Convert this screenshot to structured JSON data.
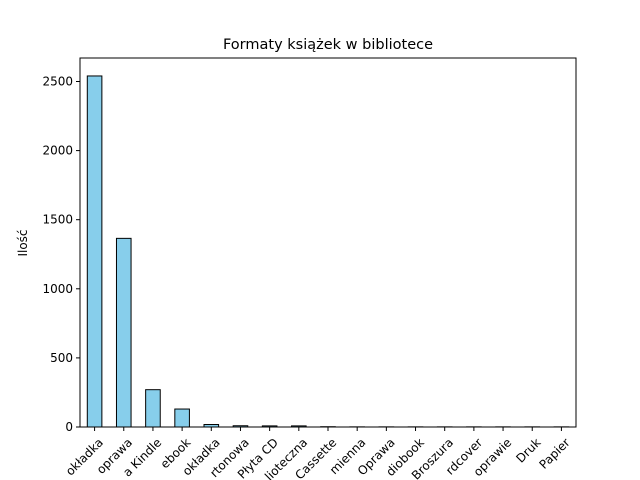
{
  "chart_data": {
    "type": "bar",
    "title": "Formaty książek w bibliotece",
    "xlabel": "",
    "ylabel": "Ilość",
    "categories": [
      "okładka",
      "oprawa",
      "a Kindle",
      "ebook",
      "okładka",
      "rtonowa",
      "Płyta CD",
      "lioteczna",
      "Cassette",
      "mienna",
      "Oprawa",
      "diobook",
      "Broszura",
      "rdcover",
      "oprawie",
      "Druk",
      "Papier"
    ],
    "values": [
      2540,
      1365,
      270,
      130,
      18,
      9,
      8,
      8,
      2,
      1,
      1,
      1,
      1,
      1,
      1,
      1,
      1
    ],
    "ylim": [
      0,
      2670
    ],
    "yticks": [
      0,
      500,
      1000,
      1500,
      2000,
      2500
    ],
    "bar_color": "#87ceeb",
    "bar_edge_color": "#000000",
    "grid": false
  }
}
